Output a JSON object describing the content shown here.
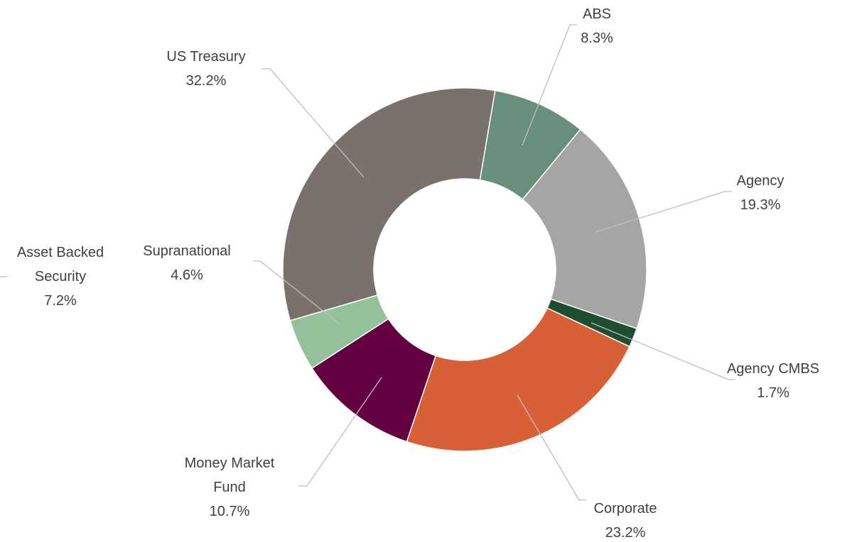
{
  "chart_data": {
    "type": "donut",
    "categories": [
      "ABS",
      "Agency",
      "Agency CMBS",
      "Corporate",
      "Money Market Fund",
      "Supranational",
      "US Treasury",
      "Asset Backed Security"
    ],
    "values": [
      8.3,
      19.3,
      1.7,
      23.2,
      10.7,
      4.6,
      32.2,
      7.2
    ],
    "value_labels": [
      "8.3%",
      "19.3%",
      "1.7%",
      "23.2%",
      "10.7%",
      "4.6%",
      "32.2%",
      "7.2%"
    ],
    "colors": [
      "#678f7c",
      "#a5a5a5",
      "#1e4d2f",
      "#d86036",
      "#640042",
      "#93c19a",
      "#7a716c",
      "none"
    ]
  }
}
